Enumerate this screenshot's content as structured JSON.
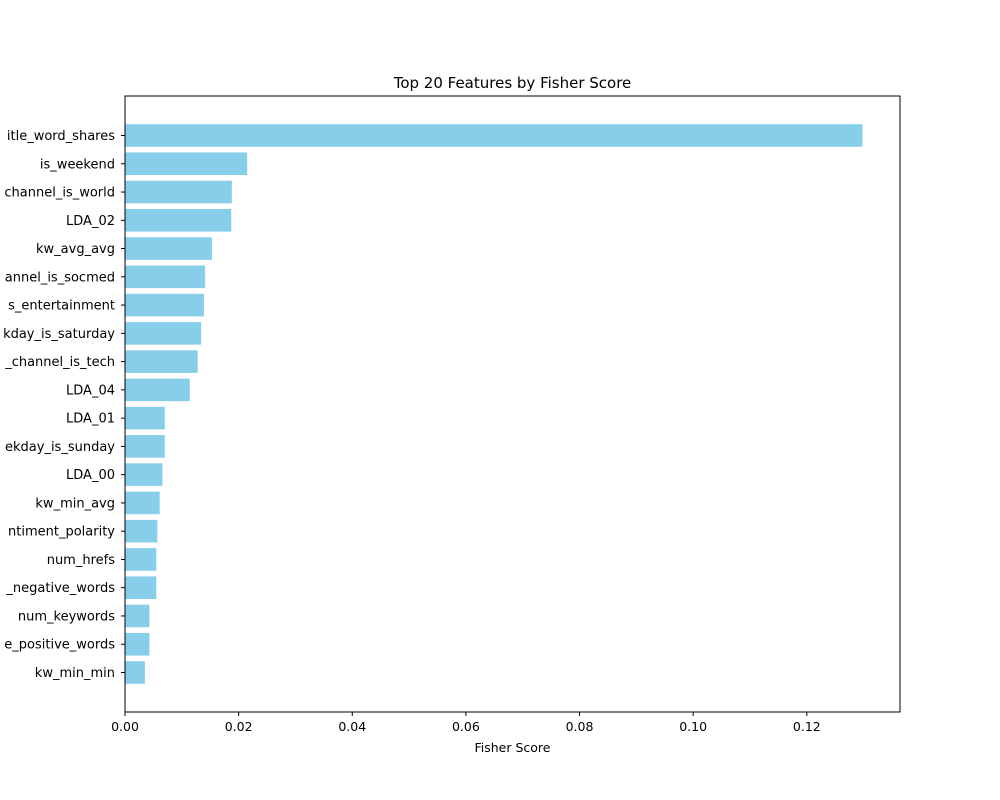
{
  "chart_data": {
    "type": "bar",
    "orientation": "horizontal",
    "title": "Top 20 Features by Fisher Score",
    "xlabel": "Fisher Score",
    "ylabel": "",
    "categories": [
      "itle_word_shares",
      "is_weekend",
      "channel_is_world",
      "LDA_02",
      "kw_avg_avg",
      "annel_is_socmed",
      "s_entertainment",
      "kday_is_saturday",
      "_channel_is_tech",
      "LDA_04",
      "LDA_01",
      "ekday_is_sunday",
      "LDA_00",
      "kw_min_avg",
      "ntiment_polarity",
      "num_hrefs",
      "_negative_words",
      "num_keywords",
      "e_positive_words",
      "kw_min_min"
    ],
    "values": [
      0.1298,
      0.0215,
      0.0188,
      0.0187,
      0.0153,
      0.0141,
      0.0139,
      0.0134,
      0.0128,
      0.0114,
      0.007,
      0.007,
      0.0066,
      0.0061,
      0.0057,
      0.0055,
      0.0055,
      0.0043,
      0.0043,
      0.0035
    ],
    "xlim": [
      0,
      0.1364
    ],
    "xticks": [
      "0.00",
      "0.02",
      "0.04",
      "0.06",
      "0.08",
      "0.10",
      "0.12"
    ],
    "xtick_values": [
      0,
      0.02,
      0.04,
      0.06,
      0.08,
      0.1,
      0.12
    ],
    "bar_color": "#87ceeb",
    "grid": false,
    "legend": "none"
  }
}
